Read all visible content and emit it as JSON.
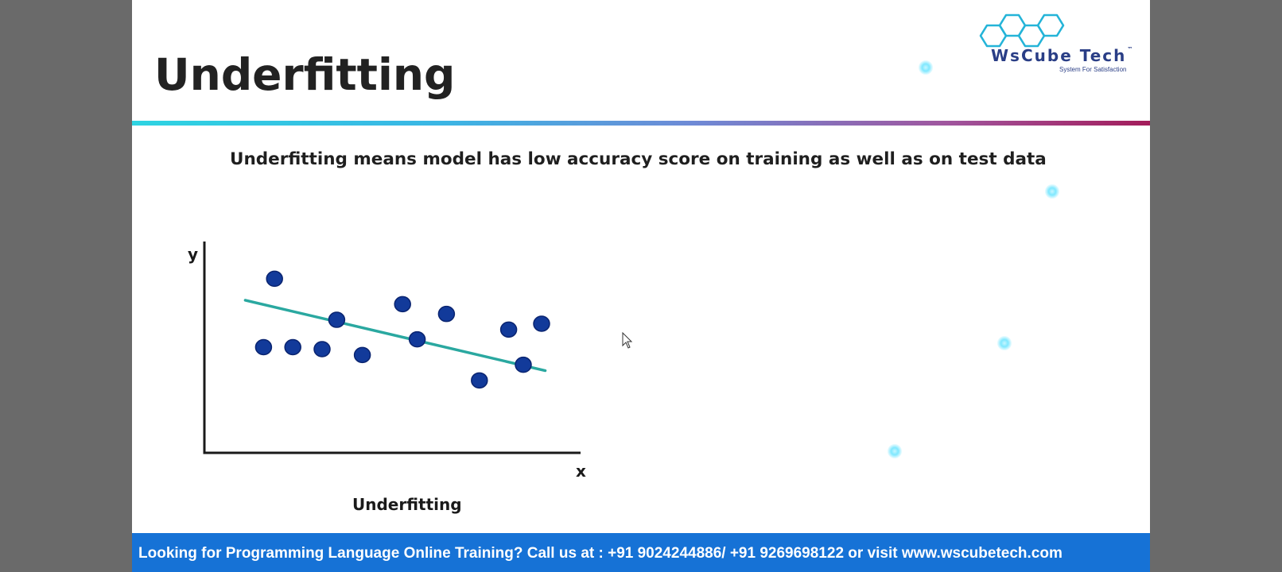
{
  "slide": {
    "title": "Underfitting",
    "subtitle": "Underfitting means model has low accuracy score on training as well as on test data",
    "caption": "Underfitting"
  },
  "logo": {
    "name": "WsCube Tech",
    "tagline": "System For Satisfaction",
    "trademark": "™"
  },
  "footer": {
    "text": "Looking for Programming Language Online Training? Call us at : +91 9024244886/ +91 9269698122 or visit www.wscubetech.com"
  },
  "colors": {
    "divider_start": "#2ed4e2",
    "divider_end": "#a31c5a",
    "footer_bg": "#1672d6",
    "points": "#123a9a",
    "fit_line": "#2aa8a0",
    "logo": "#2a3e86"
  },
  "chart_data": {
    "type": "scatter",
    "xlabel": "x",
    "ylabel": "y",
    "xlim": [
      0,
      10
    ],
    "ylim": [
      0,
      10
    ],
    "grid": false,
    "points": [
      {
        "x": 1.7,
        "y": 8.5
      },
      {
        "x": 1.4,
        "y": 5.0
      },
      {
        "x": 2.2,
        "y": 5.0
      },
      {
        "x": 3.0,
        "y": 4.9
      },
      {
        "x": 3.4,
        "y": 6.4
      },
      {
        "x": 4.1,
        "y": 4.6
      },
      {
        "x": 5.2,
        "y": 7.2
      },
      {
        "x": 5.6,
        "y": 5.4
      },
      {
        "x": 6.4,
        "y": 6.7
      },
      {
        "x": 7.3,
        "y": 3.3
      },
      {
        "x": 8.1,
        "y": 5.9
      },
      {
        "x": 8.5,
        "y": 4.1
      },
      {
        "x": 9.0,
        "y": 6.2
      }
    ],
    "fit_line": {
      "x": [
        0.9,
        9.1
      ],
      "y": [
        7.4,
        3.8
      ]
    }
  }
}
